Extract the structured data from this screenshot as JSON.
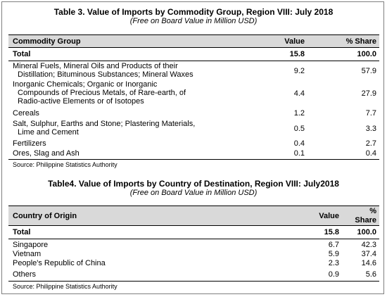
{
  "table3": {
    "title": "Table 3. Value of Imports by Commodity Group, Region VIII: July 2018",
    "subtitle": "(Free on Board Value in Million USD)",
    "headers": {
      "name": "Commodity Group",
      "value": "Value",
      "share": "% Share"
    },
    "total": {
      "name": "Total",
      "value": "15.8",
      "share": "100.0"
    },
    "rows": [
      {
        "lines": [
          "Mineral Fuels, Mineral Oils and Products of their",
          "Distillation; Bituminous Substances; Mineral Waxes"
        ],
        "value": "9.2",
        "share": "57.9"
      },
      {
        "lines": [
          "Inorganic Chemicals; Organic or Inorganic",
          "Compounds of Precious Metals, of Rare-earth,  of",
          "Radio-active Elements or of Isotopes"
        ],
        "value": "4.4",
        "share": "27.9"
      },
      {
        "lines": [
          "Cereals"
        ],
        "value": "1.2",
        "share": "7.7"
      },
      {
        "lines": [
          "Salt, Sulphur, Earths and Stone; Plastering Materials,",
          "Lime and Cement"
        ],
        "value": "0.5",
        "share": "3.3"
      },
      {
        "lines": [
          "Fertilizers"
        ],
        "value": "0.4",
        "share": "2.7"
      },
      {
        "lines": [
          "Ores, Slag and Ash"
        ],
        "value": "0.1",
        "share": "0.4"
      }
    ],
    "source": "Source: Philippine Statistics Authority"
  },
  "table4": {
    "title": "Table4. Value of Imports by Country of Destination, Region VIII: July2018",
    "subtitle": "(Free on Board Value in Million USD)",
    "headers": {
      "name": "Country of Origin",
      "value": "Value",
      "share_line1": "%",
      "share_line2": "Share"
    },
    "total": {
      "name": "Total",
      "value": "15.8",
      "share": "100.0"
    },
    "rows": [
      {
        "name": "Singapore",
        "value": "6.7",
        "share": "42.3"
      },
      {
        "name": "Vietnam",
        "value": "5.9",
        "share": "37.4"
      },
      {
        "name": "People's Republic of China",
        "value": "2.3",
        "share": "14.6"
      },
      {
        "name": "Others",
        "value": "0.9",
        "share": "5.6"
      }
    ],
    "source": "Source: Philippine Statistics Authority"
  }
}
